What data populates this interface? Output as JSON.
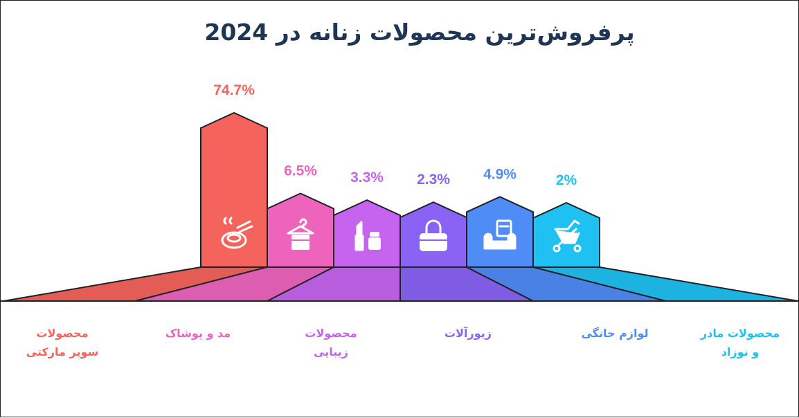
{
  "title": "پرفروش‌ترین محصولات زنانه در 2024",
  "chart_data": {
    "type": "bar",
    "title": "پرفروش‌ترین محصولات زنانه در 2024",
    "xlabel": "",
    "ylabel": "",
    "unit": "%",
    "bars": [
      {
        "value": 74.7,
        "label": "74.7%",
        "color": "#f4645d",
        "icon": "food-bowl-icon"
      },
      {
        "value": 6.5,
        "label": "6.5%",
        "color": "#ee64bd",
        "icon": "hanger-clothes-icon"
      },
      {
        "value": 3.3,
        "label": "3.3%",
        "color": "#c664ef",
        "icon": "cosmetics-lipstick-icon"
      },
      {
        "value": 2.3,
        "label": "2.3%",
        "color": "#8a63f5",
        "icon": "handbag-icon"
      },
      {
        "value": 4.9,
        "label": "4.9%",
        "color": "#4f8cf5",
        "icon": "armchair-icon"
      },
      {
        "value": 2,
        "label": "2%",
        "color": "#1ec1f2",
        "icon": "baby-stroller-icon"
      }
    ],
    "categories": [
      {
        "lines": [
          "محصولات",
          "سوپر مارکتی"
        ],
        "color": "#f4645d"
      },
      {
        "lines": [
          "مد و پوشاک"
        ],
        "color": "#ee64bd"
      },
      {
        "lines": [
          "محصولات",
          "زیبایی"
        ],
        "color": "#c664ef"
      },
      {
        "lines": [
          "زیورآلات"
        ],
        "color": "#8a63f5"
      },
      {
        "lines": [
          "لوازم خانگی"
        ],
        "color": "#4f8cf5"
      },
      {
        "lines": [
          "محصولات مادر",
          "و نوزاد"
        ],
        "color": "#1ec1f2"
      }
    ]
  }
}
